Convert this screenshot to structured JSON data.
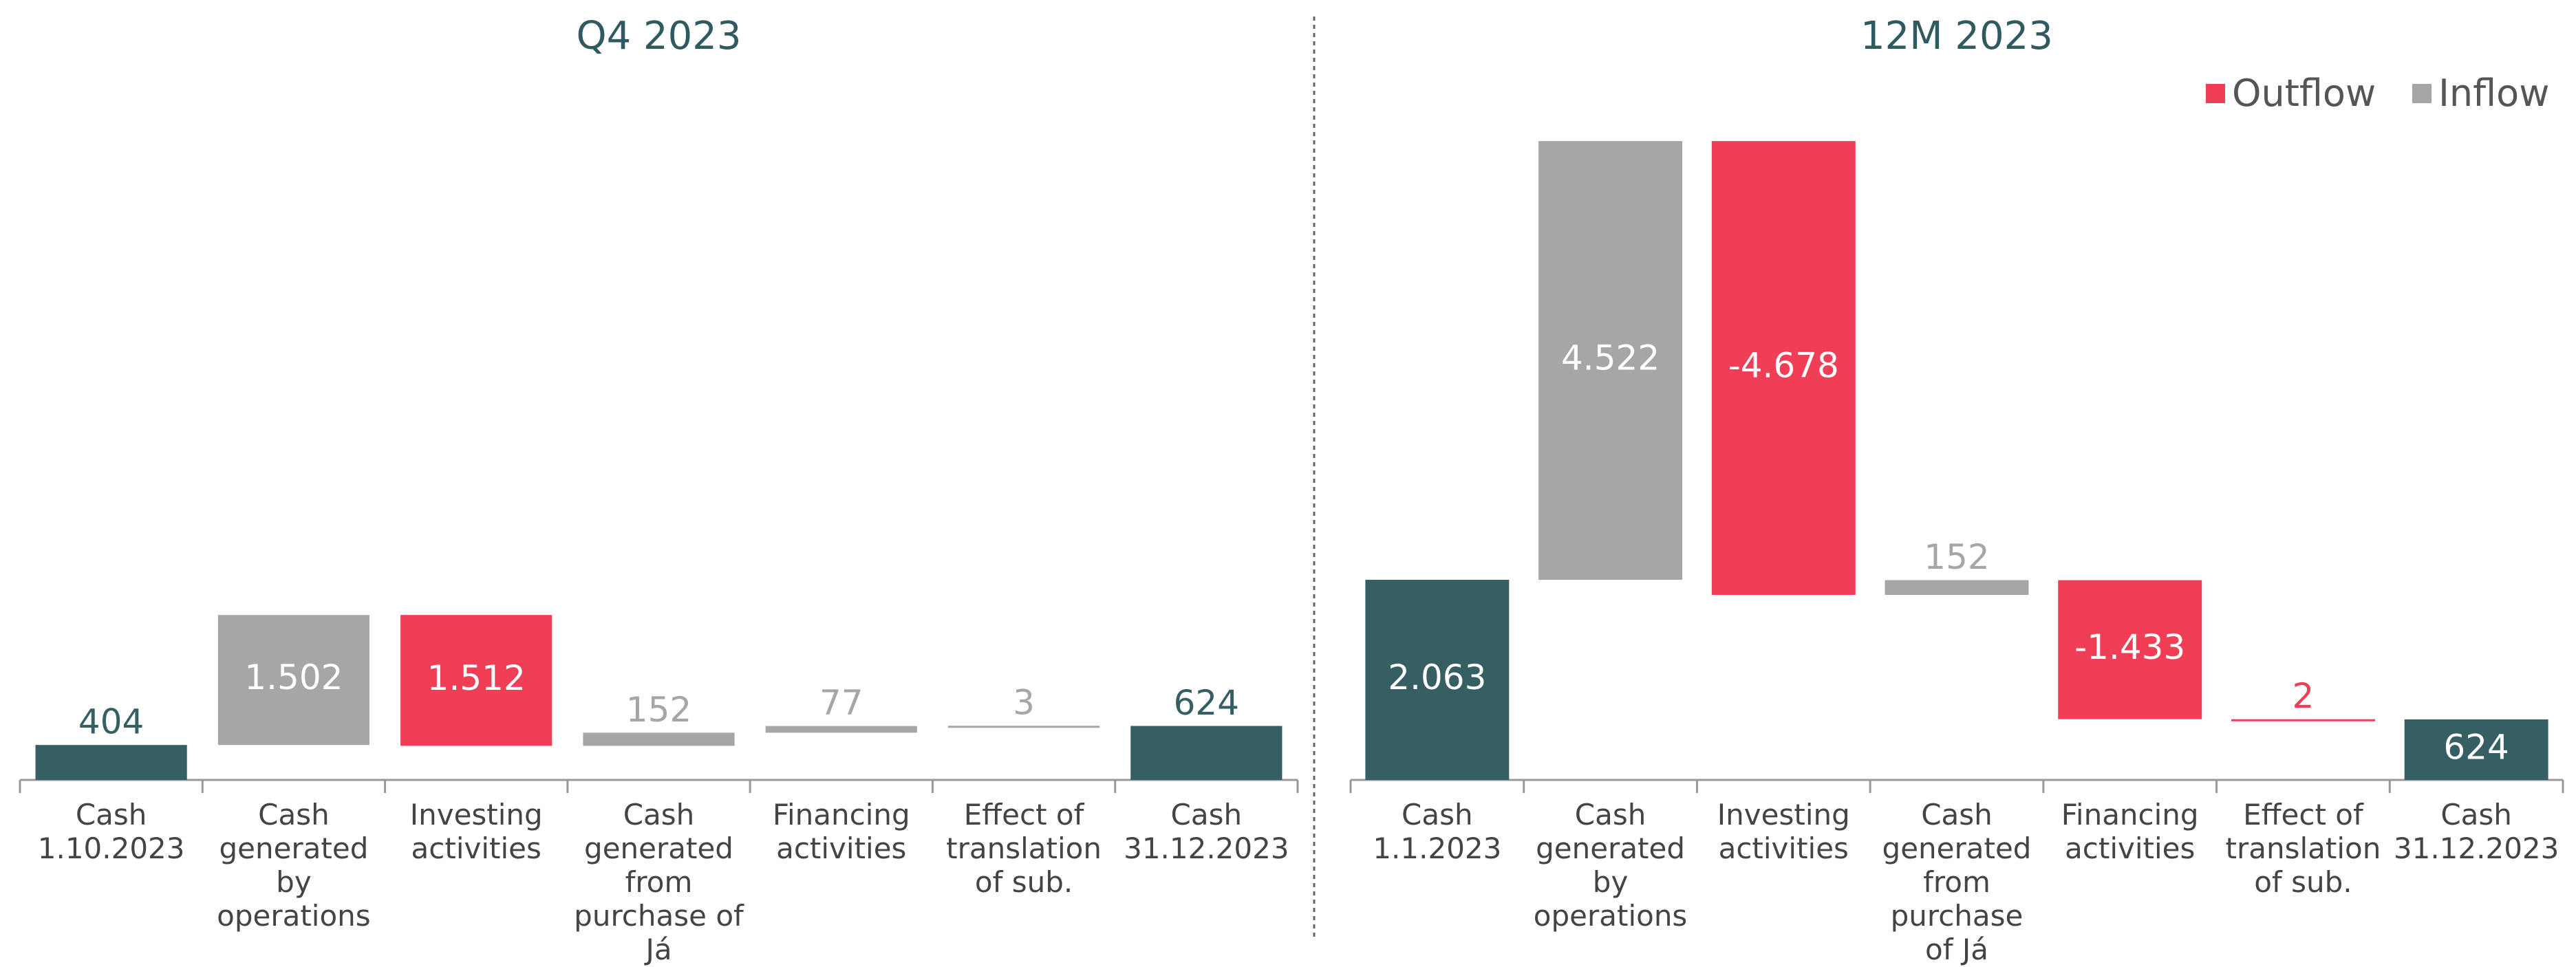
{
  "chart_data": [
    {
      "type": "waterfall",
      "title": "Q4 2023",
      "categories": [
        "Cash\n1.10.2023",
        "Cash\ngenerated\nby\noperations",
        "Investing\nactivities",
        "Cash\ngenerated\nfrom\npurchase of\nJá",
        "Financing\nactivities",
        "Effect of\ntranslation\nof sub.",
        "Cash\n31.12.2023"
      ],
      "values": [
        404,
        1502,
        -1512,
        152,
        77,
        3,
        624
      ],
      "value_labels": [
        "404",
        "1.502",
        "1.512",
        "152",
        "77",
        "3",
        "624"
      ],
      "colors": [
        "#365f63",
        "#a6a6a6",
        "#ef3e55",
        "#a6a6a6",
        "#a6a6a6",
        "#a6a6a6",
        "#365f63"
      ],
      "ylim": [
        0,
        7400
      ]
    },
    {
      "type": "waterfall",
      "title": "12M 2023",
      "categories": [
        "Cash\n1.1.2023",
        "Cash\ngenerated\nby\noperations",
        "Investing\nactivities",
        "Cash\ngenerated\nfrom\npurchase\nof Já",
        "Financing\nactivities",
        "Effect of\ntranslation\nof sub.",
        "Cash\n31.12.2023"
      ],
      "values": [
        2063,
        4522,
        -4678,
        152,
        -1433,
        -2,
        624
      ],
      "value_labels": [
        "2.063",
        "4.522",
        "-4.678",
        "152",
        "-1.433",
        "2",
        "624"
      ],
      "colors": [
        "#365f63",
        "#a6a6a6",
        "#ef3e55",
        "#a6a6a6",
        "#ef3e55",
        "#ef3e55",
        "#365f63"
      ],
      "ylim": [
        0,
        6600
      ],
      "legend": {
        "position": "top-right",
        "entries": [
          {
            "name": "Outflow",
            "color": "#ef3e55"
          },
          {
            "name": "Inflow",
            "color": "#a6a6a6"
          }
        ]
      }
    }
  ]
}
